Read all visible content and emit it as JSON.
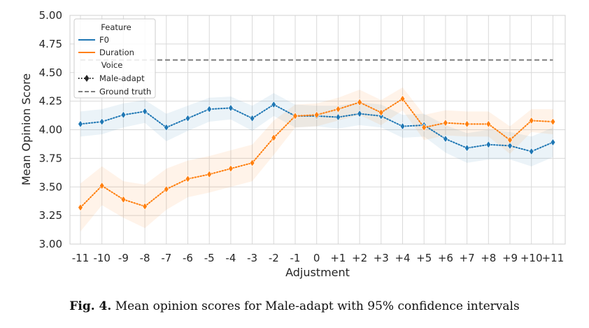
{
  "chart_data": {
    "type": "line",
    "xlabel": "Adjustment",
    "ylabel": "Mean Opinion Score",
    "ylim": [
      3.0,
      5.0
    ],
    "yticks": [
      "3.00",
      "3.25",
      "3.50",
      "3.75",
      "4.00",
      "4.25",
      "4.50",
      "4.75",
      "5.00"
    ],
    "categories": [
      "-11",
      "-10",
      "-9",
      "-8",
      "-7",
      "-6",
      "-5",
      "-4",
      "-3",
      "-2",
      "-1",
      "0",
      "+1",
      "+2",
      "+3",
      "+4",
      "+5",
      "+6",
      "+7",
      "+8",
      "+9",
      "+10",
      "+11"
    ],
    "grid": true,
    "legend_position": "top-left",
    "legend": {
      "feature_title": "Feature",
      "voice_title": "Voice",
      "items": [
        "F0",
        "Duration",
        "Male-adapt",
        "Ground truth"
      ]
    },
    "series": [
      {
        "name": "F0",
        "color": "#1f77b4",
        "values": [
          4.05,
          4.07,
          4.13,
          4.16,
          4.02,
          4.1,
          4.18,
          4.19,
          4.1,
          4.22,
          4.12,
          4.12,
          4.11,
          4.14,
          4.12,
          4.03,
          4.04,
          3.92,
          3.84,
          3.87,
          3.86,
          3.81,
          3.89
        ],
        "ci_low": [
          3.94,
          3.96,
          4.02,
          4.06,
          3.9,
          3.99,
          4.07,
          4.09,
          3.99,
          4.12,
          4.02,
          4.03,
          4.01,
          4.04,
          4.02,
          3.93,
          3.94,
          3.8,
          3.71,
          3.74,
          3.74,
          3.68,
          3.76
        ],
        "ci_high": [
          4.16,
          4.18,
          4.23,
          4.26,
          4.14,
          4.21,
          4.28,
          4.29,
          4.21,
          4.32,
          4.22,
          4.21,
          4.21,
          4.24,
          4.22,
          4.13,
          4.14,
          4.04,
          3.97,
          4.0,
          3.98,
          3.94,
          4.02
        ]
      },
      {
        "name": "Duration",
        "color": "#ff7f0e",
        "values": [
          3.32,
          3.51,
          3.39,
          3.33,
          3.48,
          3.57,
          3.61,
          3.66,
          3.71,
          3.93,
          4.12,
          4.13,
          4.18,
          4.24,
          4.15,
          4.27,
          4.02,
          4.06,
          4.05,
          4.05,
          3.91,
          4.08,
          4.07
        ],
        "ci_low": [
          3.11,
          3.34,
          3.23,
          3.14,
          3.3,
          3.41,
          3.45,
          3.5,
          3.55,
          3.78,
          4.02,
          4.03,
          4.08,
          4.13,
          4.04,
          4.17,
          3.91,
          3.95,
          3.94,
          3.94,
          3.79,
          3.98,
          3.96
        ],
        "ci_high": [
          3.53,
          3.68,
          3.55,
          3.52,
          3.66,
          3.73,
          3.77,
          3.82,
          3.87,
          4.08,
          4.22,
          4.23,
          4.28,
          4.35,
          4.26,
          4.37,
          4.13,
          4.17,
          4.16,
          4.16,
          4.03,
          4.18,
          4.18
        ]
      }
    ],
    "reference_line": {
      "name": "Ground truth",
      "value": 4.61,
      "color": "#7f7f7f"
    }
  },
  "caption": {
    "label": "Fig. 4.",
    "text": "Mean opinion scores for Male-adapt with 95% confidence intervals"
  }
}
